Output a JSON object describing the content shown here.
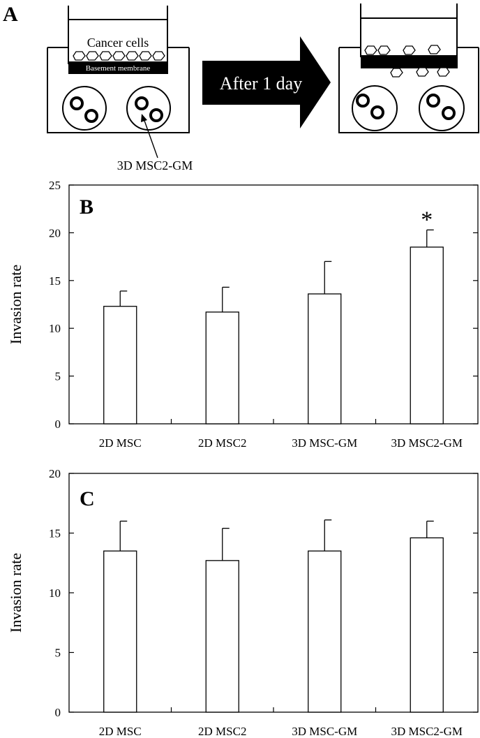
{
  "panel_a": {
    "letter": "A",
    "cancer_cells_label": "Cancer cells",
    "membrane_label": "Basement membrane",
    "arrow_label": "After 1 day",
    "spheroid_label": "3D MSC2-GM"
  },
  "chart_data": [
    {
      "panel": "B",
      "type": "bar",
      "categories": [
        "2D MSC",
        "2D MSC2",
        "3D MSC-GM",
        "3D MSC2-GM"
      ],
      "values": [
        12.3,
        11.7,
        13.6,
        18.5
      ],
      "errors": [
        1.6,
        2.6,
        3.4,
        1.8
      ],
      "ylabel": "Invasion rate",
      "ylim": [
        0,
        25
      ],
      "yticks": [
        "0",
        "5",
        "10",
        "15",
        "20",
        "25"
      ],
      "annotations": [
        {
          "category": "3D MSC2-GM",
          "text": "*"
        }
      ],
      "grid": false
    },
    {
      "panel": "C",
      "type": "bar",
      "categories": [
        "2D MSC",
        "2D MSC2",
        "3D MSC-GM",
        "3D MSC2-GM"
      ],
      "values": [
        13.5,
        12.7,
        13.5,
        14.6
      ],
      "errors": [
        2.5,
        2.7,
        2.6,
        1.4
      ],
      "ylabel": "Invasion rate",
      "ylim": [
        0,
        20
      ],
      "yticks": [
        "0",
        "5",
        "10",
        "15",
        "20"
      ],
      "annotations": [],
      "grid": false
    }
  ]
}
